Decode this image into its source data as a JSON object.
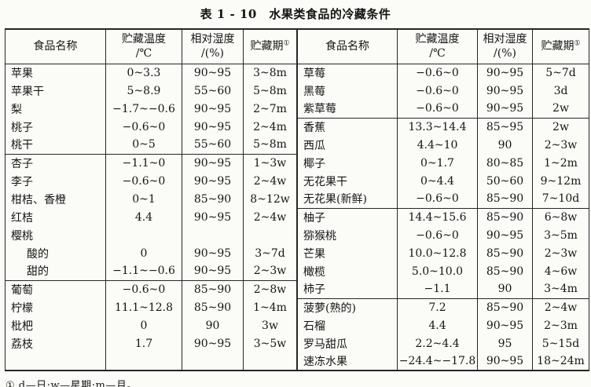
{
  "title": "表 1 - 10　水果类食品的冷藏条件",
  "footnote": "① d—日;w—星期;m—月。",
  "header": {
    "name": "食品名称",
    "temp_line1": "贮藏温度",
    "temp_line2": "/℃",
    "humidity_line1": "相对湿度",
    "humidity_line2": "/(%)",
    "period": "贮藏期",
    "period_sup": "①"
  },
  "tables": [
    {
      "side": "left",
      "rows": [
        {
          "name": "苹果",
          "temp": "0~3.3",
          "humidity": "90~95",
          "period": "3~8m"
        },
        {
          "name": "苹果干",
          "temp": "5~8.9",
          "humidity": "55~60",
          "period": "5~8m"
        },
        {
          "name": "梨",
          "temp": "−1.7~−0.6",
          "humidity": "90~95",
          "period": "2~7m"
        },
        {
          "name": "桃子",
          "temp": "−0.6~0",
          "humidity": "90~95",
          "period": "2~4m"
        },
        {
          "name": "桃干",
          "temp": "0~5",
          "humidity": "55~60",
          "period": "5~8m"
        },
        {
          "name": "杏子",
          "temp": "−1.1~0",
          "humidity": "90~95",
          "period": "1~3w",
          "divider": true
        },
        {
          "name": "李子",
          "temp": "−0.6~0",
          "humidity": "90~95",
          "period": "2~4w"
        },
        {
          "name": "柑桔、香橙",
          "temp": "0~1",
          "humidity": "85~90",
          "period": "8~12w"
        },
        {
          "name": "红桔",
          "temp": "4.4",
          "humidity": "90~95",
          "period": "2~4w"
        },
        {
          "name": "樱桃",
          "temp": "",
          "humidity": "",
          "period": ""
        },
        {
          "name": "酸的",
          "temp": "0",
          "humidity": "90~95",
          "period": "3~7d",
          "indent": true
        },
        {
          "name": "甜的",
          "temp": "−1.1~−0.6",
          "humidity": "90~95",
          "period": "2~3w",
          "indent": true
        },
        {
          "name": "葡萄",
          "temp": "−0.6~0",
          "humidity": "85~90",
          "period": "2~8w",
          "divider": true
        },
        {
          "name": "柠檬",
          "temp": "11.1~12.8",
          "humidity": "85~90",
          "period": "1~4m"
        },
        {
          "name": "枇杷",
          "temp": "0",
          "humidity": "90",
          "period": "3w"
        },
        {
          "name": "荔枝",
          "temp": "1.7",
          "humidity": "90~95",
          "period": "3~5w"
        },
        {
          "name": "",
          "temp": "",
          "humidity": "",
          "period": ""
        }
      ]
    },
    {
      "side": "right",
      "rows": [
        {
          "name": "草莓",
          "temp": "−0.6~0",
          "humidity": "90~95",
          "period": "5~7d"
        },
        {
          "name": "黑莓",
          "temp": "−0.6~0",
          "humidity": "90~95",
          "period": "3d"
        },
        {
          "name": "紫草莓",
          "temp": "−0.6~0",
          "humidity": "90~95",
          "period": "2w"
        },
        {
          "name": "香蕉",
          "temp": "13.3~14.4",
          "humidity": "85~95",
          "period": "2w",
          "divider": true
        },
        {
          "name": "西瓜",
          "temp": "4.4~10",
          "humidity": "90",
          "period": "2~3w"
        },
        {
          "name": "椰子",
          "temp": "0~1.7",
          "humidity": "80~85",
          "period": "1~2m"
        },
        {
          "name": "无花果干",
          "temp": "0~4.4",
          "humidity": "50~60",
          "period": "9~12m"
        },
        {
          "name": "无花果(新鲜)",
          "temp": "−0.6~0",
          "humidity": "85~90",
          "period": "7~10d"
        },
        {
          "name": "柚子",
          "temp": "14.4~15.6",
          "humidity": "85~90",
          "period": "6~8w",
          "divider": true
        },
        {
          "name": "猕猴桃",
          "temp": "−0.6~0",
          "humidity": "90~95",
          "period": "3~5m"
        },
        {
          "name": "芒果",
          "temp": "10.0~12.8",
          "humidity": "85~90",
          "period": "2~3w"
        },
        {
          "name": "橄榄",
          "temp": "5.0~10.0",
          "humidity": "85~90",
          "period": "4~6w"
        },
        {
          "name": "柿子",
          "temp": "−1.1",
          "humidity": "90",
          "period": "3~4m"
        },
        {
          "name": "菠萝(熟的)",
          "temp": "7.2",
          "humidity": "85~90",
          "period": "2~4w",
          "divider": true
        },
        {
          "name": "石榴",
          "temp": "4.4",
          "humidity": "90~95",
          "period": "2~3m"
        },
        {
          "name": "罗马甜瓜",
          "temp": "2.2~4.4",
          "humidity": "95",
          "period": "5~15d"
        },
        {
          "name": "速冻水果",
          "temp": "−24.4~−17.8",
          "humidity": "90~95",
          "period": "18~24m"
        }
      ]
    }
  ]
}
